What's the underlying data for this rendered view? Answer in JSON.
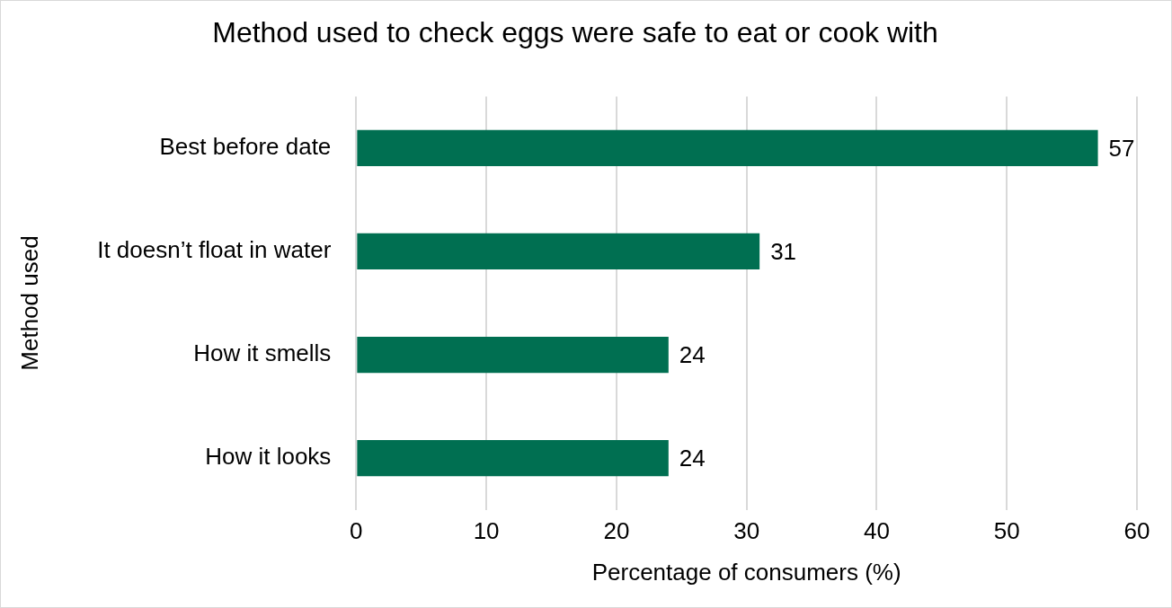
{
  "chart_data": {
    "type": "bar",
    "orientation": "horizontal",
    "title": "Method used to check eggs were safe to eat or cook with",
    "xlabel": "Percentage of consumers (%)",
    "ylabel": "Method used",
    "categories": [
      "Best before date",
      "It doesn’t float in water",
      "How it smells",
      "How it looks"
    ],
    "values": [
      57,
      31,
      24,
      24
    ],
    "color": "#006f51",
    "xlim": [
      0,
      60
    ],
    "xticks": [
      0,
      10,
      20,
      30,
      40,
      50,
      60
    ],
    "grid": "x",
    "data_labels": true
  }
}
